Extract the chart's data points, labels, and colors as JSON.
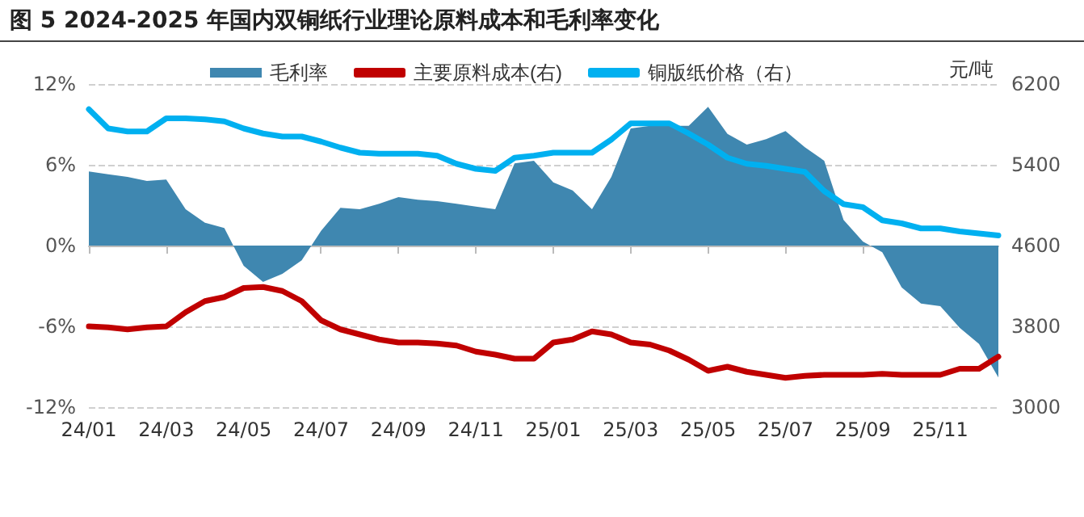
{
  "chart_data": {
    "type": "line",
    "title": "图 5 2024-2025 年国内双铜纸行业理论原料成本和毛利率变化",
    "y2label": "元/吨",
    "categories": [
      "24/01",
      null,
      null,
      null,
      "24/03",
      null,
      null,
      null,
      "24/05",
      null,
      null,
      null,
      "24/07",
      null,
      null,
      null,
      "24/09",
      null,
      null,
      null,
      "24/11",
      null,
      null,
      null,
      "25/01",
      null,
      null,
      null,
      "25/03",
      null,
      null,
      null,
      "25/05",
      null,
      null,
      null,
      "25/07",
      null,
      null,
      null,
      "25/09",
      null,
      null,
      null,
      "25/11",
      null,
      null,
      null
    ],
    "series": [
      {
        "name": "毛利率",
        "type": "area",
        "color": "#3f87b0",
        "values": [
          5.5,
          5.3,
          5.1,
          4.8,
          4.9,
          2.7,
          1.7,
          1.3,
          -1.5,
          -2.7,
          -2.1,
          -1.1,
          1.1,
          2.8,
          2.7,
          3.1,
          3.6,
          3.4,
          3.3,
          3.1,
          2.9,
          2.7,
          6.1,
          6.3,
          4.7,
          4.1,
          2.7,
          5.1,
          8.7,
          8.9,
          8.9,
          8.9,
          10.3,
          8.3,
          7.5,
          7.9,
          8.5,
          7.3,
          6.3,
          1.9,
          0.3,
          -0.5,
          -3.1,
          -4.3,
          -4.5,
          -6.1,
          -7.3,
          -9.8
        ]
      },
      {
        "name": "主要原料成本(右)",
        "axis": "y2",
        "color": "#c00000",
        "values": [
          3800,
          3790,
          3770,
          3790,
          3800,
          3940,
          4050,
          4090,
          4180,
          4190,
          4150,
          4050,
          3860,
          3770,
          3720,
          3670,
          3640,
          3640,
          3630,
          3610,
          3550,
          3520,
          3480,
          3480,
          3640,
          3670,
          3750,
          3720,
          3640,
          3620,
          3560,
          3470,
          3360,
          3400,
          3350,
          3320,
          3290,
          3310,
          3320,
          3320,
          3320,
          3330,
          3320,
          3320,
          3320,
          3380,
          3380,
          3500
        ]
      },
      {
        "name": "铜版纸价格（右）",
        "axis": "y2",
        "color": "#00b0f0",
        "values": [
          5950,
          5760,
          5730,
          5730,
          5860,
          5860,
          5850,
          5830,
          5760,
          5710,
          5680,
          5680,
          5630,
          5570,
          5520,
          5510,
          5510,
          5510,
          5490,
          5410,
          5360,
          5340,
          5470,
          5490,
          5520,
          5520,
          5520,
          5650,
          5810,
          5810,
          5810,
          5710,
          5600,
          5470,
          5410,
          5390,
          5360,
          5330,
          5140,
          5010,
          4980,
          4850,
          4820,
          4770,
          4770,
          4740,
          4720,
          4700
        ]
      }
    ],
    "ylim": [
      -12,
      12
    ],
    "yticks": [
      {
        "value": -12,
        "label": "-12%"
      },
      {
        "value": -6,
        "label": "-6%"
      },
      {
        "value": 0,
        "label": "0%"
      },
      {
        "value": 6,
        "label": "6%"
      },
      {
        "value": 12,
        "label": "12%"
      }
    ],
    "y2lim": [
      3000,
      6200
    ],
    "y2ticks": [
      3000,
      3800,
      4600,
      5400,
      6200
    ],
    "grid": "y",
    "legend": "top",
    "line_style": "solid"
  }
}
